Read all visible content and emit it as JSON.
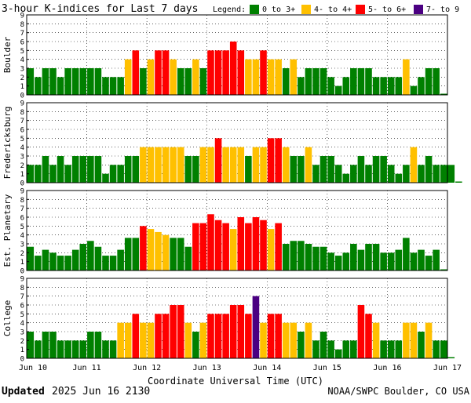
{
  "header": {
    "title": "3-hour K-indices for Last 7 days",
    "legend_label": "Legend:",
    "legend": [
      {
        "label": "0 to 3+",
        "color": "#008000"
      },
      {
        "label": "4- to 4+",
        "color": "#ffc000"
      },
      {
        "label": "5- to 6+",
        "color": "#ff0000"
      },
      {
        "label": "7- to 9",
        "color": "#4b0082"
      }
    ]
  },
  "footer": {
    "updated_label": "Updated",
    "updated_value": "2025 Jun 16 2130",
    "credit": "NOAA/SWPC Boulder, CO USA"
  },
  "chart_data": {
    "type": "bar",
    "title": "3-hour K-indices for Last 7 days",
    "xlabel": "Coordinate Universal Time (UTC)",
    "x_ticks": [
      "Jun 10",
      "Jun 11",
      "Jun 12",
      "Jun 13",
      "Jun 14",
      "Jun 15",
      "Jun 16",
      "Jun 17"
    ],
    "ylim": [
      0,
      9
    ],
    "y_ticks": [
      "0",
      "1",
      "2",
      "3",
      "4",
      "5",
      "6",
      "7",
      "8",
      "9"
    ],
    "bins_per_day": 8,
    "grid": true,
    "color_scale": [
      {
        "min": 0,
        "max": 3.99,
        "color": "#008000"
      },
      {
        "min": 4,
        "max": 4.99,
        "color": "#ffc000"
      },
      {
        "min": 5,
        "max": 6.99,
        "color": "#ff0000"
      },
      {
        "min": 7,
        "max": 9,
        "color": "#4b0082"
      }
    ],
    "series": [
      {
        "name": "Boulder",
        "values": [
          3,
          2,
          3,
          3,
          2,
          3,
          3,
          3,
          3,
          3,
          2,
          2,
          2,
          4,
          5,
          3,
          4,
          5,
          5,
          4,
          3,
          3,
          4,
          3,
          5,
          5,
          5,
          6,
          5,
          4,
          4,
          5,
          4,
          4,
          3,
          4,
          2,
          3,
          3,
          3,
          2,
          1,
          2,
          3,
          3,
          3,
          2,
          2,
          2,
          2,
          4,
          1,
          2,
          3,
          3,
          0
        ]
      },
      {
        "name": "Fredericksburg",
        "values": [
          2,
          2,
          3,
          2,
          3,
          2,
          3,
          3,
          3,
          3,
          1,
          2,
          2,
          3,
          3,
          4,
          4,
          4,
          4,
          4,
          4,
          3,
          3,
          4,
          4,
          5,
          4,
          4,
          4,
          3,
          4,
          4,
          5,
          5,
          4,
          3,
          3,
          4,
          2,
          3,
          3,
          2,
          1,
          2,
          3,
          2,
          3,
          3,
          2,
          1,
          2,
          4,
          2,
          3,
          2,
          2,
          2,
          0
        ]
      },
      {
        "name": "Est. Planetary",
        "values": [
          2.67,
          1.67,
          2.33,
          2.0,
          1.67,
          1.67,
          2.33,
          3.0,
          3.33,
          2.67,
          1.67,
          1.67,
          2.33,
          3.67,
          3.67,
          5.0,
          4.67,
          4.33,
          4.0,
          3.67,
          3.67,
          2.67,
          5.33,
          5.33,
          6.33,
          5.67,
          5.33,
          4.67,
          6.0,
          5.33,
          6.0,
          5.67,
          4.67,
          5.33,
          3.0,
          3.33,
          3.33,
          3.0,
          2.67,
          2.67,
          2.0,
          1.67,
          2.0,
          3.0,
          2.33,
          3.0,
          3.0,
          2.0,
          2.0,
          2.33,
          3.67,
          2.0,
          2.33,
          1.67,
          2.33,
          0
        ]
      },
      {
        "name": "College",
        "values": [
          3,
          2,
          3,
          3,
          2,
          2,
          2,
          2,
          3,
          3,
          2,
          2,
          4,
          4,
          5,
          4,
          4,
          5,
          5,
          6,
          6,
          4,
          3,
          4,
          5,
          5,
          5,
          6,
          6,
          5,
          7,
          4,
          5,
          5,
          4,
          4,
          3,
          4,
          2,
          3,
          2,
          1,
          2,
          2,
          6,
          5,
          4,
          2,
          2,
          2,
          4,
          4,
          3,
          4,
          2,
          2,
          0
        ]
      }
    ]
  }
}
